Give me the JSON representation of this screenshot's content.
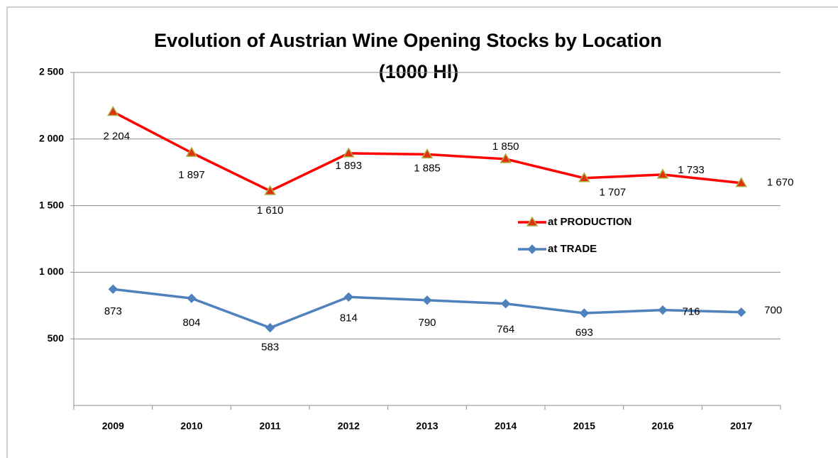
{
  "chart_data": {
    "type": "line",
    "title": "Evolution of Austrian Wine Opening Stocks by Location",
    "subtitle": "(1000 Hl)",
    "categories": [
      "2009",
      "2010",
      "2011",
      "2012",
      "2013",
      "2014",
      "2015",
      "2016",
      "2017"
    ],
    "series": [
      {
        "name": "at PRODUCTION",
        "color": "#ff0000",
        "marker": "triangle",
        "values": [
          2204,
          1897,
          1610,
          1893,
          1885,
          1850,
          1707,
          1733,
          1670
        ],
        "value_labels": [
          "2 204",
          "1 897",
          "1 610",
          "1 893",
          "1 885",
          "1 850",
          "1 707",
          "1 733",
          "1 670"
        ]
      },
      {
        "name": "at TRADE",
        "color": "#4f81bd",
        "marker": "diamond",
        "values": [
          873,
          804,
          583,
          814,
          790,
          764,
          693,
          716,
          700
        ]
      }
    ],
    "ylim": [
      0,
      2500
    ],
    "yticks": [
      500,
      {
        "value": 1000,
        "label": "1 000"
      },
      {
        "value": 1500,
        "label": "1 500"
      },
      {
        "value": 2000,
        "label": "2 000"
      },
      {
        "value": 2500,
        "label": "2 500"
      }
    ],
    "grid": true
  }
}
